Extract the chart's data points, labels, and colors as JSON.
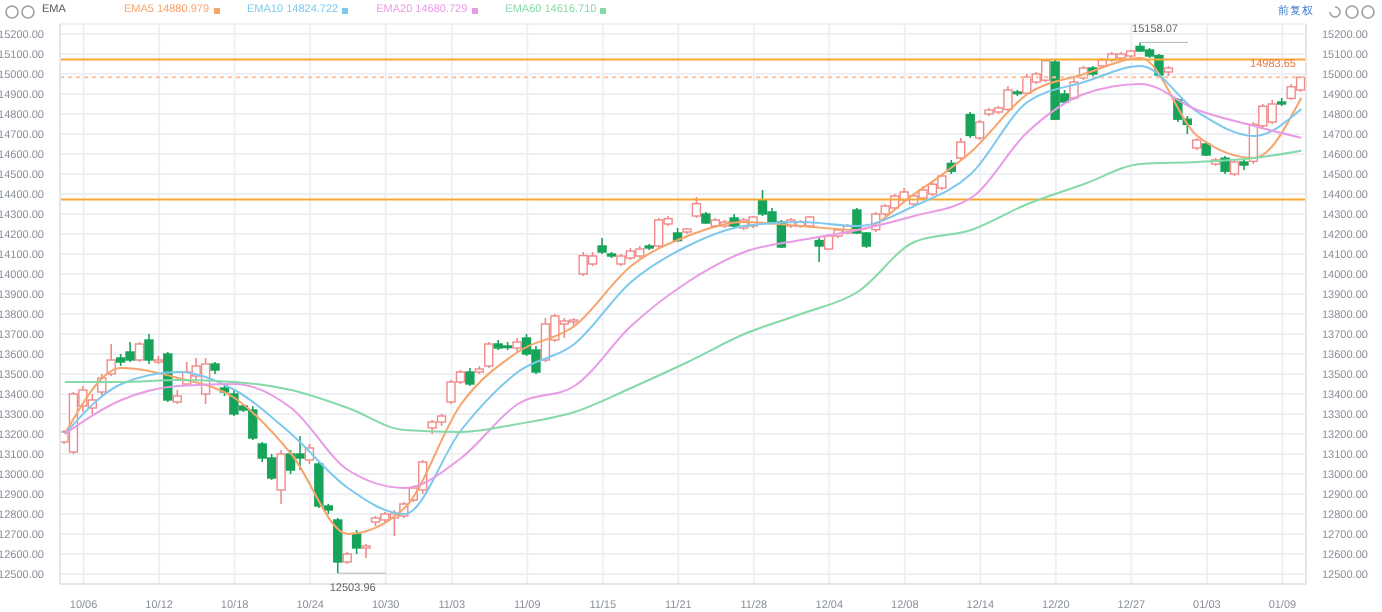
{
  "chart_data": {
    "type": "candlestick",
    "categories": [
      null,
      null,
      "10/06",
      null,
      null,
      null,
      null,
      null,
      null,
      null,
      "10/12",
      null,
      null,
      null,
      null,
      null,
      null,
      null,
      "10/18",
      null,
      null,
      null,
      null,
      null,
      null,
      null,
      "10/24",
      null,
      null,
      null,
      null,
      null,
      null,
      null,
      "10/30",
      null,
      null,
      null,
      null,
      null,
      null,
      "11/03",
      null,
      null,
      null,
      null,
      null,
      null,
      null,
      "11/09",
      null,
      null,
      null,
      null,
      null,
      null,
      null,
      "11/15",
      null,
      null,
      null,
      null,
      null,
      null,
      null,
      "11/21",
      null,
      null,
      null,
      null,
      null,
      null,
      null,
      "11/28",
      null,
      null,
      null,
      null,
      null,
      null,
      null,
      "12/04",
      null,
      null,
      null,
      null,
      null,
      null,
      null,
      "12/08",
      null,
      null,
      null,
      null,
      null,
      null,
      null,
      "12/14",
      null,
      null,
      null,
      null,
      null,
      null,
      null,
      "12/20",
      null,
      null,
      null,
      null,
      null,
      null,
      null,
      "12/27",
      null,
      null,
      null,
      null,
      null,
      null,
      null,
      "01/03",
      null,
      null,
      null,
      null,
      null,
      null,
      null,
      "01/09",
      null,
      null
    ],
    "ohlc": [
      [
        13160,
        13220,
        13150,
        13210
      ],
      [
        13110,
        13410,
        13100,
        13400
      ],
      [
        13340,
        13440,
        13310,
        13420
      ],
      [
        13330,
        13400,
        13300,
        13370
      ],
      [
        13410,
        13500,
        13390,
        13480
      ],
      [
        13500,
        13650,
        13490,
        13570
      ],
      [
        13580,
        13600,
        13540,
        13560
      ],
      [
        13610,
        13660,
        13560,
        13570
      ],
      [
        13570,
        13660,
        13560,
        13650
      ],
      [
        13670,
        13700,
        13550,
        13570
      ],
      [
        13560,
        13590,
        13550,
        13570
      ],
      [
        13600,
        13610,
        13360,
        13370
      ],
      [
        13360,
        13420,
        13350,
        13390
      ],
      [
        13450,
        13560,
        13440,
        13510
      ],
      [
        13490,
        13580,
        13470,
        13540
      ],
      [
        13400,
        13580,
        13350,
        13550
      ],
      [
        13550,
        13560,
        13500,
        13520
      ],
      [
        13430,
        13440,
        13390,
        13410
      ],
      [
        13400,
        13420,
        13290,
        13300
      ],
      [
        13340,
        13350,
        13310,
        13320
      ],
      [
        13320,
        13340,
        13170,
        13180
      ],
      [
        13150,
        13160,
        13060,
        13080
      ],
      [
        13080,
        13100,
        12970,
        12980
      ],
      [
        12920,
        13120,
        12850,
        13100
      ],
      [
        13100,
        13120,
        13000,
        13020
      ],
      [
        13100,
        13190,
        13020,
        13080
      ],
      [
        13070,
        13150,
        13050,
        13130
      ],
      [
        13050,
        13060,
        12830,
        12840
      ],
      [
        12840,
        12850,
        12800,
        12820
      ],
      [
        12770,
        12780,
        12503.96,
        12560
      ],
      [
        12560,
        12610,
        12550,
        12600
      ],
      [
        12700,
        12720,
        12600,
        12630
      ],
      [
        12630,
        12650,
        12580,
        12640
      ],
      [
        12760,
        12790,
        12740,
        12780
      ],
      [
        12770,
        12810,
        12750,
        12800
      ],
      [
        12780,
        12820,
        12690,
        12800
      ],
      [
        12790,
        12860,
        12780,
        12850
      ],
      [
        12870,
        12940,
        12860,
        12930
      ],
      [
        12920,
        13070,
        12900,
        13060
      ],
      [
        13230,
        13270,
        13200,
        13260
      ],
      [
        13260,
        13300,
        13240,
        13290
      ],
      [
        13360,
        13470,
        13350,
        13460
      ],
      [
        13460,
        13520,
        13450,
        13510
      ],
      [
        13510,
        13530,
        13440,
        13450
      ],
      [
        13510,
        13540,
        13500,
        13525
      ],
      [
        13540,
        13660,
        13530,
        13650
      ],
      [
        13650,
        13670,
        13620,
        13630
      ],
      [
        13640,
        13660,
        13620,
        13635
      ],
      [
        13630,
        13680,
        13610,
        13660
      ],
      [
        13680,
        13700,
        13590,
        13600
      ],
      [
        13620,
        13640,
        13500,
        13510
      ],
      [
        13570,
        13780,
        13560,
        13750
      ],
      [
        13670,
        13800,
        13660,
        13790
      ],
      [
        13750,
        13780,
        13680,
        13765
      ],
      [
        13760,
        13780,
        13740,
        13770
      ],
      [
        14000,
        14110,
        13990,
        14092
      ],
      [
        14050,
        14110,
        14040,
        14090
      ],
      [
        14140,
        14180,
        14100,
        14110
      ],
      [
        14100,
        14110,
        14080,
        14090
      ],
      [
        14050,
        14100,
        14040,
        14090
      ],
      [
        14080,
        14130,
        14070,
        14115
      ],
      [
        14090,
        14140,
        14080,
        14125
      ],
      [
        14140,
        14150,
        14120,
        14130
      ],
      [
        14140,
        14280,
        14130,
        14270
      ],
      [
        14250,
        14290,
        14240,
        14277
      ],
      [
        14205,
        14230,
        14160,
        14167
      ],
      [
        14210,
        14230,
        14200,
        14225
      ],
      [
        14290,
        14385,
        14280,
        14352
      ],
      [
        14300,
        14310,
        14250,
        14255
      ],
      [
        14240,
        14280,
        14230,
        14270
      ],
      [
        14240,
        14270,
        14230,
        14260
      ],
      [
        14280,
        14300,
        14230,
        14240
      ],
      [
        14230,
        14280,
        14220,
        14270
      ],
      [
        14240,
        14290,
        14230,
        14285
      ],
      [
        14370,
        14420,
        14290,
        14300
      ],
      [
        14310,
        14330,
        14250,
        14260
      ],
      [
        14260,
        14270,
        14130,
        14135
      ],
      [
        14240,
        14280,
        14230,
        14270
      ],
      [
        14240,
        14270,
        14230,
        14260
      ],
      [
        14240,
        14290,
        14230,
        14285
      ],
      [
        14167,
        14180,
        14060,
        14140
      ],
      [
        14125,
        14200,
        14120,
        14190
      ],
      [
        14190,
        14230,
        14180,
        14220
      ],
      [
        14205,
        14250,
        14200,
        14240
      ],
      [
        14320,
        14330,
        14200,
        14205
      ],
      [
        14205,
        14210,
        14130,
        14140
      ],
      [
        14222,
        14310,
        14210,
        14300
      ],
      [
        14300,
        14350,
        14290,
        14340
      ],
      [
        14330,
        14400,
        14320,
        14390
      ],
      [
        14370,
        14430,
        14360,
        14410
      ],
      [
        14350,
        14400,
        14340,
        14390
      ],
      [
        14380,
        14440,
        14370,
        14420
      ],
      [
        14400,
        14460,
        14390,
        14449
      ],
      [
        14430,
        14500,
        14420,
        14490
      ],
      [
        14553,
        14570,
        14500,
        14514
      ],
      [
        14580,
        14680,
        14570,
        14660
      ],
      [
        14797,
        14810,
        14680,
        14693
      ],
      [
        14680,
        14770,
        14670,
        14760
      ],
      [
        14800,
        14830,
        14790,
        14820
      ],
      [
        14810,
        14840,
        14800,
        14830
      ],
      [
        14823,
        14940,
        14815,
        14920
      ],
      [
        14910,
        14920,
        14890,
        14905
      ],
      [
        14904,
        15000,
        14900,
        14985
      ],
      [
        14960,
        15010,
        14950,
        15000
      ],
      [
        14969,
        15075,
        14960,
        15066
      ],
      [
        15060,
        15070,
        14770,
        14774
      ],
      [
        14900,
        14920,
        14850,
        14860
      ],
      [
        14880,
        14980,
        14870,
        14960
      ],
      [
        14980,
        15040,
        14970,
        15030
      ],
      [
        15030,
        15040,
        14990,
        15000
      ],
      [
        15040,
        15080,
        15030,
        15070
      ],
      [
        15070,
        15110,
        15060,
        15100
      ],
      [
        15080,
        15110,
        15070,
        15100
      ],
      [
        15090,
        15120,
        15080,
        15115
      ],
      [
        15138,
        15158.07,
        15110,
        15115
      ],
      [
        15120,
        15130,
        15080,
        15090
      ],
      [
        15092,
        15100,
        14980,
        14995
      ],
      [
        15010,
        15040,
        14990,
        15030
      ],
      [
        14871,
        14880,
        14760,
        14774
      ],
      [
        14774,
        14790,
        14700,
        14748
      ],
      [
        14630,
        14680,
        14620,
        14670
      ],
      [
        14650,
        14660,
        14590,
        14595
      ],
      [
        14550,
        14580,
        14540,
        14570
      ],
      [
        14579,
        14590,
        14500,
        14514
      ],
      [
        14500,
        14570,
        14490,
        14560
      ],
      [
        14560,
        14570,
        14520,
        14545
      ],
      [
        14563,
        14760,
        14550,
        14748
      ],
      [
        14741,
        14850,
        14730,
        14839
      ],
      [
        14760,
        14870,
        14750,
        14850
      ],
      [
        14860,
        14880,
        14840,
        14850
      ],
      [
        14878,
        14950,
        14870,
        14936
      ],
      [
        14920,
        14990,
        14910,
        14983.65
      ]
    ],
    "series": [
      {
        "name": "EMA5 14880.979",
        "type": "line",
        "color": "#f7a46b",
        "values": [
          13200,
          null,
          null,
          null,
          null,
          null,
          13530,
          null,
          null,
          null,
          null,
          null,
          13480,
          null,
          null,
          null,
          null,
          null,
          13380,
          null,
          null,
          null,
          null,
          null,
          13100,
          null,
          null,
          null,
          null,
          null,
          12700,
          null,
          null,
          null,
          null,
          null,
          12830,
          null,
          null,
          null,
          null,
          null,
          13350,
          null,
          null,
          null,
          null,
          null,
          13610,
          null,
          null,
          null,
          null,
          null,
          13740,
          null,
          null,
          null,
          null,
          null,
          14040,
          null,
          null,
          null,
          null,
          null,
          14190,
          null,
          null,
          null,
          null,
          null,
          14260,
          null,
          null,
          null,
          null,
          null,
          14240,
          null,
          null,
          null,
          null,
          null,
          14220,
          null,
          null,
          null,
          null,
          null,
          14400,
          null,
          null,
          null,
          null,
          null,
          14610,
          null,
          null,
          null,
          null,
          null,
          14900,
          null,
          null,
          null,
          null,
          null,
          15000,
          null,
          null,
          null,
          null,
          null,
          15080,
          null,
          null,
          null,
          null,
          null,
          14690,
          null,
          null,
          null,
          null,
          null,
          14580,
          null,
          null,
          null,
          null,
          14880.979
        ]
      },
      {
        "name": "EMA10 14824.722",
        "type": "line",
        "color": "#7ec8ee",
        "values": [
          13200,
          null,
          null,
          null,
          null,
          null,
          13450,
          null,
          null,
          null,
          null,
          null,
          13510,
          null,
          null,
          null,
          null,
          null,
          13420,
          null,
          null,
          null,
          null,
          null,
          13200,
          null,
          null,
          null,
          null,
          null,
          12930,
          null,
          null,
          null,
          null,
          null,
          12800,
          null,
          null,
          null,
          null,
          null,
          13220,
          null,
          null,
          null,
          null,
          null,
          13510,
          null,
          null,
          null,
          null,
          null,
          13650,
          null,
          null,
          null,
          null,
          null,
          13960,
          null,
          null,
          null,
          null,
          null,
          14140,
          null,
          null,
          null,
          null,
          null,
          14240,
          null,
          null,
          null,
          null,
          null,
          14260,
          null,
          null,
          null,
          null,
          null,
          14240,
          null,
          null,
          null,
          null,
          null,
          14340,
          null,
          null,
          null,
          null,
          null,
          14500,
          null,
          null,
          null,
          null,
          null,
          14860,
          null,
          null,
          null,
          null,
          null,
          14960,
          null,
          null,
          null,
          null,
          null,
          15040,
          null,
          null,
          null,
          null,
          null,
          14810,
          null,
          null,
          null,
          null,
          null,
          14690,
          null,
          null,
          null,
          null,
          14824.722
        ]
      },
      {
        "name": "EMA20 14680.729",
        "type": "line",
        "color": "#e99be6",
        "values": [
          13200,
          null,
          null,
          null,
          null,
          null,
          13370,
          null,
          null,
          null,
          null,
          null,
          13440,
          null,
          null,
          null,
          null,
          null,
          13450,
          null,
          null,
          null,
          null,
          null,
          13330,
          null,
          null,
          null,
          null,
          null,
          13020,
          null,
          null,
          null,
          null,
          null,
          12930,
          null,
          null,
          null,
          null,
          null,
          13080,
          null,
          null,
          null,
          null,
          null,
          13350,
          null,
          null,
          null,
          null,
          null,
          13440,
          null,
          null,
          null,
          null,
          null,
          13740,
          null,
          null,
          null,
          null,
          null,
          13960,
          null,
          null,
          null,
          null,
          null,
          14110,
          null,
          null,
          null,
          null,
          null,
          14170,
          null,
          null,
          null,
          null,
          null,
          14220,
          null,
          null,
          null,
          null,
          null,
          14290,
          null,
          null,
          null,
          null,
          null,
          14380,
          null,
          null,
          null,
          null,
          null,
          14710,
          null,
          null,
          null,
          null,
          null,
          14900,
          null,
          null,
          null,
          null,
          null,
          14950,
          null,
          null,
          null,
          null,
          null,
          14820,
          null,
          null,
          null,
          null,
          null,
          14740,
          null,
          null,
          null,
          null,
          14680.729
        ]
      },
      {
        "name": "EMA60 14616.710",
        "type": "line",
        "color": "#86d9a8",
        "values": [
          13460,
          null,
          null,
          null,
          null,
          null,
          13460,
          null,
          null,
          null,
          null,
          null,
          13470,
          null,
          null,
          null,
          null,
          null,
          13460,
          null,
          null,
          null,
          null,
          null,
          13420,
          null,
          null,
          null,
          null,
          null,
          13330,
          null,
          null,
          null,
          null,
          null,
          13220,
          null,
          null,
          null,
          null,
          null,
          13210,
          null,
          null,
          null,
          null,
          null,
          13250,
          null,
          null,
          null,
          null,
          null,
          13310,
          null,
          null,
          null,
          null,
          null,
          13430,
          null,
          null,
          null,
          null,
          null,
          13560,
          null,
          null,
          null,
          null,
          null,
          13700,
          null,
          null,
          null,
          null,
          null,
          13800,
          null,
          null,
          null,
          null,
          null,
          13910,
          null,
          null,
          null,
          null,
          null,
          14160,
          null,
          null,
          null,
          null,
          null,
          14220,
          null,
          null,
          null,
          null,
          null,
          14350,
          null,
          null,
          null,
          null,
          null,
          14450,
          null,
          null,
          null,
          null,
          null,
          14550,
          null,
          null,
          null,
          null,
          null,
          14560,
          null,
          null,
          null,
          null,
          null,
          14580,
          null,
          null,
          null,
          null,
          14616.71
        ]
      }
    ],
    "ylim": [
      12450,
      15250
    ],
    "yticks": [
      {
        "value": 12500,
        "label": "12500.00"
      },
      {
        "value": 12600,
        "label": "12600.00"
      },
      {
        "value": 12700,
        "label": "12700.00"
      },
      {
        "value": 12800,
        "label": "12800.00"
      },
      {
        "value": 12900,
        "label": "12900.00"
      },
      {
        "value": 13000,
        "label": "13000.00"
      },
      {
        "value": 13100,
        "label": "13100.00"
      },
      {
        "value": 13200,
        "label": "13200.00"
      },
      {
        "value": 13300,
        "label": "13300.00"
      },
      {
        "value": 13400,
        "label": "13400.00"
      },
      {
        "value": 13500,
        "label": "13500.00"
      },
      {
        "value": 13600,
        "label": "13600.00"
      },
      {
        "value": 13700,
        "label": "13700.00"
      },
      {
        "value": 13800,
        "label": "13800.00"
      },
      {
        "value": 13900,
        "label": "13900.00"
      },
      {
        "value": 14000,
        "label": "14000.00"
      },
      {
        "value": 14100,
        "label": "14100.00"
      },
      {
        "value": 14200,
        "label": "14200.00"
      },
      {
        "value": 14300,
        "label": "14300.00"
      },
      {
        "value": 14400,
        "label": "14400.00"
      },
      {
        "value": 14500,
        "label": "14500.00"
      },
      {
        "value": 14600,
        "label": "14600.00"
      },
      {
        "value": 14700,
        "label": "14700.00"
      },
      {
        "value": 14800,
        "label": "14800.00"
      },
      {
        "value": 14900,
        "label": "14900.00"
      },
      {
        "value": 15000,
        "label": "15000.00"
      },
      {
        "value": 15100,
        "label": "15100.00"
      },
      {
        "value": 15200,
        "label": "15200.00"
      }
    ],
    "y2lim": [
      12450,
      15250
    ],
    "y2ticks": [
      {
        "value": 12500,
        "label": "12500.00"
      },
      {
        "value": 12600,
        "label": "12600.00"
      },
      {
        "value": 12700,
        "label": "12700.00"
      },
      {
        "value": 12800,
        "label": "12800.00"
      },
      {
        "value": 12900,
        "label": "12900.00"
      },
      {
        "value": 13000,
        "label": "13000.00"
      },
      {
        "value": 13100,
        "label": "13100.00"
      },
      {
        "value": 13200,
        "label": "13200.00"
      },
      {
        "value": 13300,
        "label": "13300.00"
      },
      {
        "value": 13400,
        "label": "13400.00"
      },
      {
        "value": 13500,
        "label": "13500.00"
      },
      {
        "value": 13600,
        "label": "13600.00"
      },
      {
        "value": 13700,
        "label": "13700.00"
      },
      {
        "value": 13800,
        "label": "13800.00"
      },
      {
        "value": 13900,
        "label": "13900.00"
      },
      {
        "value": 14000,
        "label": "14000.00"
      },
      {
        "value": 14100,
        "label": "14100.00"
      },
      {
        "value": 14200,
        "label": "14200.00"
      },
      {
        "value": 14300,
        "label": "14300.00"
      },
      {
        "value": 14400,
        "label": "14400.00"
      },
      {
        "value": 14500,
        "label": "14500.00"
      },
      {
        "value": 14600,
        "label": "14600.00"
      },
      {
        "value": 14700,
        "label": "14700.00"
      },
      {
        "value": 14800,
        "label": "14800.00"
      },
      {
        "value": 14900,
        "label": "14900.00"
      },
      {
        "value": 15000,
        "label": "15000.00"
      },
      {
        "value": 15100,
        "label": "15100.00"
      },
      {
        "value": 15200,
        "label": "15200.00"
      }
    ],
    "ref_lines": [
      {
        "axis": "y",
        "value": 15073,
        "color": "#f7a833",
        "line_style": "solid"
      },
      {
        "axis": "y",
        "value": 14372,
        "color": "#f7a833",
        "line_style": "solid"
      },
      {
        "axis": "y",
        "value": 14983.65,
        "label": "14983.65",
        "color": "#f9c3a0",
        "line_style": "dashed"
      }
    ],
    "annotations": [
      "15158.07",
      "12503.96",
      "EMA",
      "前复权"
    ],
    "grid": true,
    "legend": "top left",
    "marker": "none"
  }
}
